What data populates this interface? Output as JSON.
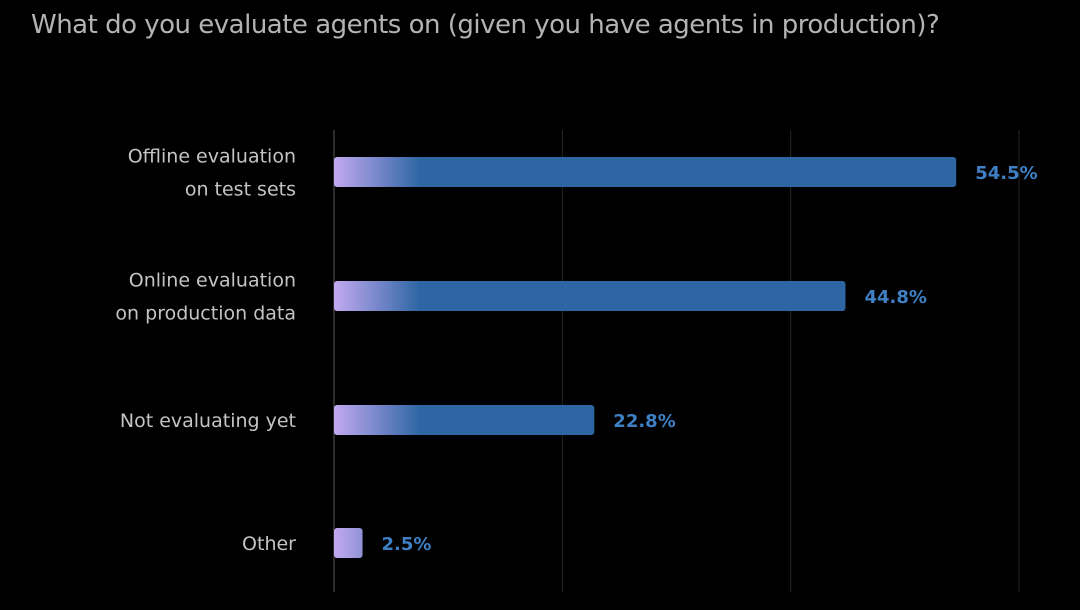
{
  "title": "What do you evaluate agents on (given you have agents in production)?",
  "colors": {
    "background": "#000000",
    "bar": "#2d66a3",
    "bar_start": "#c3a9f1",
    "value_label": "#3f7fc4",
    "category_label": "#c4c4c4",
    "title": "#b3b3b3",
    "gridline": "#262626"
  },
  "chart_data": {
    "type": "bar",
    "orientation": "horizontal",
    "title": "What do you evaluate agents on (given you have agents in production)?",
    "categories": [
      [
        "Offline evaluation",
        "on test sets"
      ],
      [
        "Online evaluation",
        "on production data"
      ],
      [
        "Not evaluating yet"
      ],
      [
        "Other"
      ]
    ],
    "values": [
      54.5,
      44.8,
      22.8,
      2.5
    ],
    "value_labels": [
      "54.5%",
      "44.8%",
      "22.8%",
      "2.5%"
    ],
    "xlim": [
      0,
      60
    ],
    "grid": true,
    "legend": "none"
  }
}
